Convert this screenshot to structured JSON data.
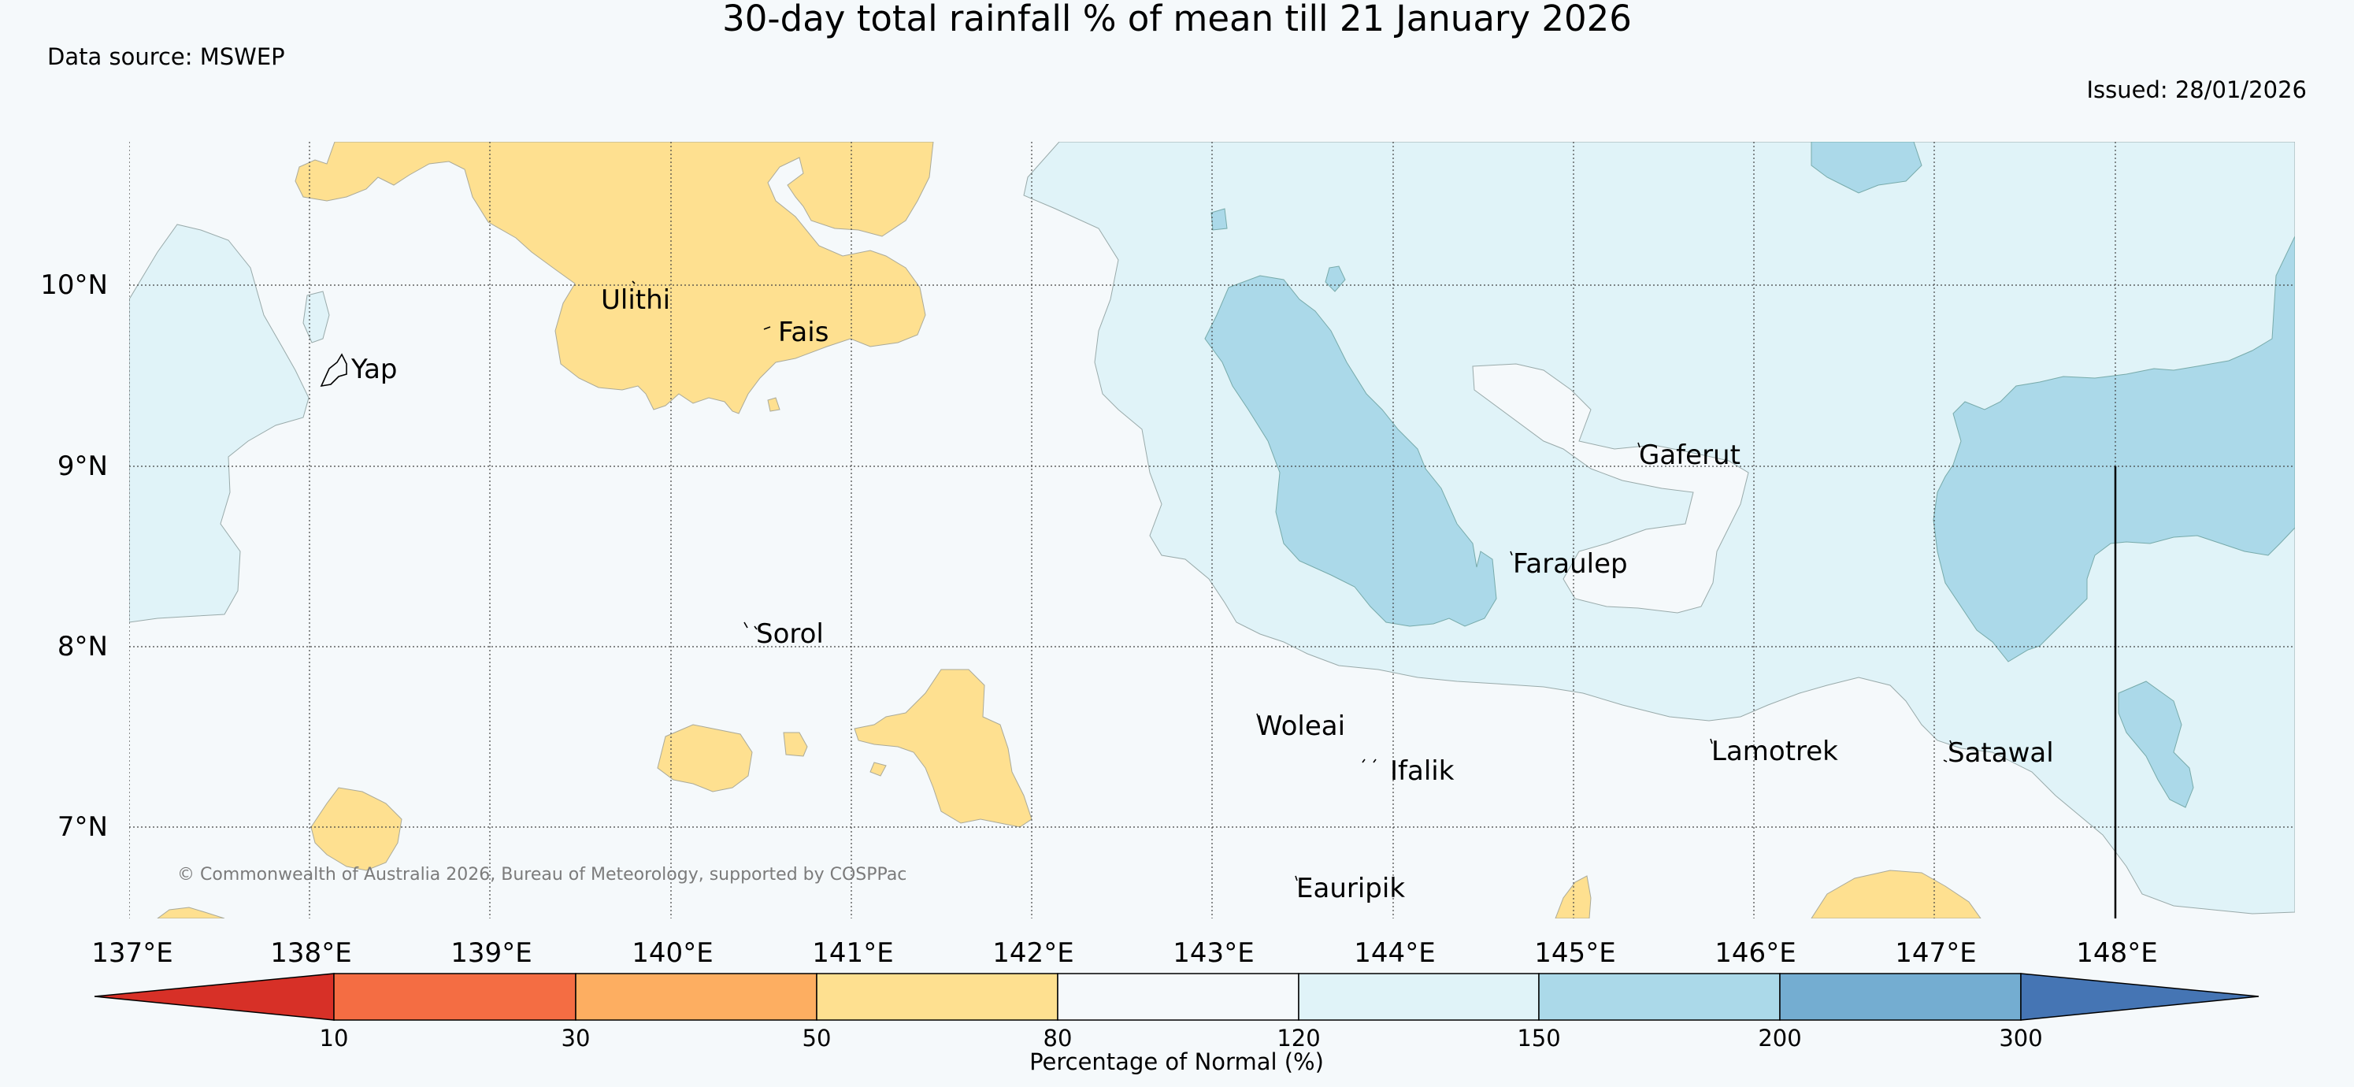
{
  "title": "30-day total rainfall % of mean till 21 January 2026",
  "data_source": "Data source: MSWEP",
  "issued": "Issued: 28/01/2026",
  "copyright": "© Commonwealth of Australia 2026, Bureau of Meteorology, supported by COSPPac",
  "map": {
    "lon_labels": [
      "137°E",
      "138°E",
      "139°E",
      "140°E",
      "141°E",
      "142°E",
      "143°E",
      "144°E",
      "145°E",
      "146°E",
      "147°E",
      "148°E"
    ],
    "lat_labels": [
      "10°N",
      "9°N",
      "8°N",
      "7°N"
    ],
    "places": [
      {
        "name": "Yap",
        "lon": 138.15,
        "lat": 9.52
      },
      {
        "name": "Ulithi",
        "lon": 139.7,
        "lat": 9.95
      },
      {
        "name": "Fais",
        "lon": 140.52,
        "lat": 9.77
      },
      {
        "name": "Sorol",
        "lon": 140.38,
        "lat": 8.13
      },
      {
        "name": "Gaferut",
        "lon": 145.38,
        "lat": 9.23
      },
      {
        "name": "Faraulep",
        "lon": 144.53,
        "lat": 8.59
      },
      {
        "name": "Woleai",
        "lon": 143.91,
        "lat": 7.37
      },
      {
        "name": "Ifalik",
        "lon": 144.45,
        "lat": 7.25
      },
      {
        "name": "Lamotrek",
        "lon": 146.37,
        "lat": 7.5
      },
      {
        "name": "Satawal",
        "lon": 147.03,
        "lat": 7.37
      },
      {
        "name": "Eauripik",
        "lon": 143.04,
        "lat": 6.69
      }
    ]
  },
  "colorbar": {
    "title": "Percentage of Normal (%)",
    "boundaries": [
      "10",
      "30",
      "50",
      "80",
      "120",
      "150",
      "200",
      "300"
    ],
    "colors": [
      "#d73027",
      "#f46d43",
      "#fdae61",
      "#fee090",
      "#f5f9fb",
      "#e0f3f8",
      "#abd9e9",
      "#74add1",
      "#4575b4"
    ]
  }
}
